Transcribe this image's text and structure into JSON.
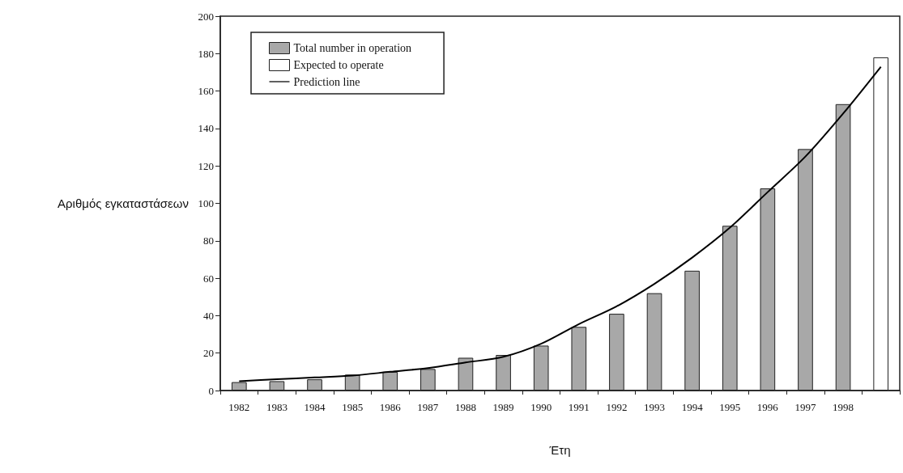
{
  "chart_data": {
    "type": "bar",
    "xlabel": "Έτη",
    "ylabel": "Αριθμός εγκαταστάσεων",
    "categories": [
      "1982",
      "1983",
      "1984",
      "1985",
      "1986",
      "1987",
      "1988",
      "1989",
      "1990",
      "1991",
      "1992",
      "1993",
      "1994",
      "1995",
      "1996",
      "1997",
      "1998",
      null
    ],
    "series": [
      {
        "name": "Total number in operation",
        "color": "#a8a8a8",
        "values": [
          4.5,
          5,
          6,
          8.5,
          10,
          11.5,
          17.5,
          19,
          24,
          34,
          41,
          52,
          64,
          88,
          108,
          129,
          153,
          null
        ]
      },
      {
        "name": "Expected to operate",
        "color": "#ffffff",
        "values": [
          null,
          null,
          null,
          null,
          null,
          null,
          null,
          null,
          null,
          null,
          null,
          null,
          null,
          null,
          null,
          null,
          null,
          178
        ]
      },
      {
        "name": "Prediction line",
        "type": "line",
        "color": "#000000",
        "values": [
          5,
          6,
          7,
          8,
          10,
          12,
          15,
          18,
          25,
          35.5,
          45,
          57,
          71,
          87,
          106,
          125,
          148,
          173
        ]
      }
    ],
    "ylim": [
      0,
      200
    ],
    "yticks": [
      0,
      20,
      40,
      60,
      80,
      100,
      120,
      140,
      160,
      180,
      200
    ],
    "grid": false,
    "legend": "top left",
    "marker": "none",
    "line_style": "solid"
  }
}
